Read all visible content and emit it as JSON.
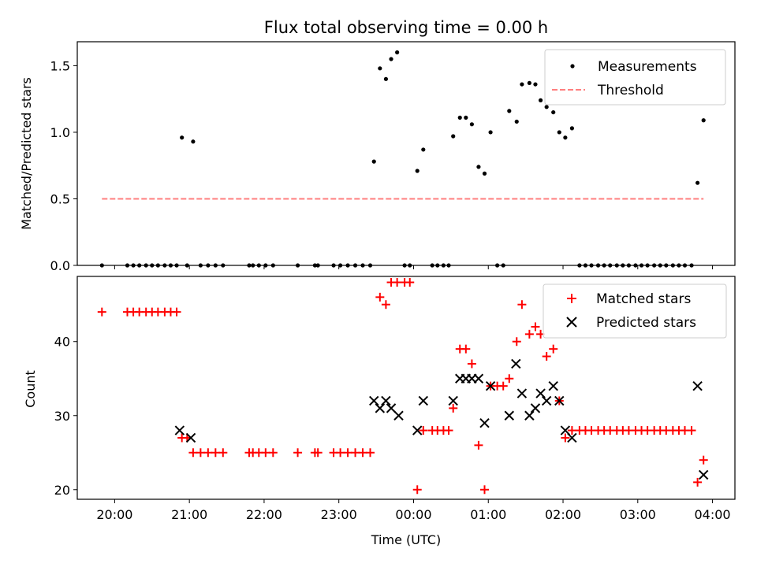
{
  "chart_data": [
    {
      "type": "scatter",
      "title": "Flux total observing time = 0.00 h",
      "xlabel": "",
      "ylabel": "Matched/Predicted stars",
      "ylim": [
        0,
        1.68
      ],
      "yticks": [
        0.0,
        0.5,
        1.0,
        1.5
      ],
      "ytick_labels": [
        "0.0",
        "0.5",
        "1.0",
        "1.5"
      ],
      "legend_position": "top-right",
      "series": [
        {
          "name": "Measurements",
          "color": "#000000",
          "marker": "dot",
          "points": [
            [
              19.83,
              0
            ],
            [
              20.17,
              0
            ],
            [
              20.25,
              0
            ],
            [
              20.33,
              0
            ],
            [
              20.42,
              0
            ],
            [
              20.5,
              0
            ],
            [
              20.58,
              0
            ],
            [
              20.67,
              0
            ],
            [
              20.75,
              0
            ],
            [
              20.83,
              0
            ],
            [
              20.9,
              0.96
            ],
            [
              20.97,
              0
            ],
            [
              21.05,
              0.93
            ],
            [
              21.15,
              0
            ],
            [
              21.25,
              0
            ],
            [
              21.35,
              0
            ],
            [
              21.45,
              0
            ],
            [
              21.8,
              0
            ],
            [
              21.85,
              0
            ],
            [
              21.93,
              0
            ],
            [
              22.02,
              0
            ],
            [
              22.12,
              0
            ],
            [
              22.45,
              0
            ],
            [
              22.68,
              0
            ],
            [
              22.72,
              0
            ],
            [
              22.93,
              0
            ],
            [
              23.02,
              0
            ],
            [
              23.12,
              0
            ],
            [
              23.22,
              0
            ],
            [
              23.32,
              0
            ],
            [
              23.42,
              0
            ],
            [
              23.47,
              0.78
            ],
            [
              23.55,
              1.48
            ],
            [
              23.63,
              1.4
            ],
            [
              23.7,
              1.55
            ],
            [
              23.78,
              1.6
            ],
            [
              23.88,
              0
            ],
            [
              23.95,
              0
            ],
            [
              24.05,
              0.71
            ],
            [
              24.13,
              0.87
            ],
            [
              24.25,
              0
            ],
            [
              24.32,
              0
            ],
            [
              24.4,
              0
            ],
            [
              24.47,
              0
            ],
            [
              24.53,
              0.97
            ],
            [
              24.62,
              1.11
            ],
            [
              24.7,
              1.11
            ],
            [
              24.78,
              1.06
            ],
            [
              24.87,
              0.74
            ],
            [
              24.95,
              0.69
            ],
            [
              25.03,
              1.0
            ],
            [
              25.12,
              0
            ],
            [
              25.2,
              0
            ],
            [
              25.28,
              1.16
            ],
            [
              25.38,
              1.08
            ],
            [
              25.45,
              1.36
            ],
            [
              25.55,
              1.37
            ],
            [
              25.63,
              1.36
            ],
            [
              25.7,
              1.24
            ],
            [
              25.78,
              1.19
            ],
            [
              25.87,
              1.15
            ],
            [
              25.95,
              1.0
            ],
            [
              26.03,
              0.96
            ],
            [
              26.12,
              1.03
            ],
            [
              26.22,
              0
            ],
            [
              26.3,
              0
            ],
            [
              26.38,
              0
            ],
            [
              26.47,
              0
            ],
            [
              26.55,
              0
            ],
            [
              26.63,
              0
            ],
            [
              26.72,
              0
            ],
            [
              26.8,
              0
            ],
            [
              26.88,
              0
            ],
            [
              26.97,
              0
            ],
            [
              27.05,
              0
            ],
            [
              27.13,
              0
            ],
            [
              27.22,
              0
            ],
            [
              27.3,
              0
            ],
            [
              27.38,
              0
            ],
            [
              27.47,
              0
            ],
            [
              27.55,
              0
            ],
            [
              27.63,
              0
            ],
            [
              27.72,
              0
            ],
            [
              27.8,
              0.62
            ],
            [
              27.88,
              1.09
            ]
          ]
        },
        {
          "name": "Threshold",
          "color": "#ff7f7f",
          "marker": "dashed-line",
          "points": [
            [
              19.83,
              0.5
            ],
            [
              27.88,
              0.5
            ]
          ]
        }
      ]
    },
    {
      "type": "scatter",
      "title": "",
      "xlabel": "Time (UTC)",
      "ylabel": "Count",
      "ylim": [
        18.7,
        48.8
      ],
      "yticks": [
        20,
        30,
        40
      ],
      "ytick_labels": [
        "20",
        "30",
        "40"
      ],
      "legend_position": "top-right",
      "series": [
        {
          "name": "Matched stars",
          "color": "#ff0000",
          "marker": "plus",
          "points": [
            [
              19.83,
              44
            ],
            [
              20.17,
              44
            ],
            [
              20.25,
              44
            ],
            [
              20.33,
              44
            ],
            [
              20.42,
              44
            ],
            [
              20.5,
              44
            ],
            [
              20.58,
              44
            ],
            [
              20.67,
              44
            ],
            [
              20.75,
              44
            ],
            [
              20.83,
              44
            ],
            [
              20.9,
              27
            ],
            [
              20.97,
              27
            ],
            [
              21.05,
              25
            ],
            [
              21.15,
              25
            ],
            [
              21.25,
              25
            ],
            [
              21.35,
              25
            ],
            [
              21.45,
              25
            ],
            [
              21.8,
              25
            ],
            [
              21.85,
              25
            ],
            [
              21.93,
              25
            ],
            [
              22.02,
              25
            ],
            [
              22.12,
              25
            ],
            [
              22.45,
              25
            ],
            [
              22.68,
              25
            ],
            [
              22.72,
              25
            ],
            [
              22.93,
              25
            ],
            [
              23.02,
              25
            ],
            [
              23.12,
              25
            ],
            [
              23.22,
              25
            ],
            [
              23.32,
              25
            ],
            [
              23.42,
              25
            ],
            [
              23.55,
              46
            ],
            [
              23.63,
              45
            ],
            [
              23.7,
              48
            ],
            [
              23.78,
              48
            ],
            [
              23.88,
              48
            ],
            [
              23.95,
              48
            ],
            [
              24.05,
              20
            ],
            [
              24.13,
              28
            ],
            [
              24.25,
              28
            ],
            [
              24.32,
              28
            ],
            [
              24.4,
              28
            ],
            [
              24.47,
              28
            ],
            [
              24.53,
              31
            ],
            [
              24.62,
              39
            ],
            [
              24.7,
              39
            ],
            [
              24.78,
              37
            ],
            [
              24.87,
              26
            ],
            [
              24.95,
              20
            ],
            [
              25.03,
              34
            ],
            [
              25.12,
              34
            ],
            [
              25.2,
              34
            ],
            [
              25.28,
              35
            ],
            [
              25.38,
              40
            ],
            [
              25.45,
              45
            ],
            [
              25.55,
              41
            ],
            [
              25.63,
              42
            ],
            [
              25.7,
              41
            ],
            [
              25.78,
              38
            ],
            [
              25.87,
              39
            ],
            [
              25.95,
              32
            ],
            [
              26.03,
              27
            ],
            [
              26.12,
              28
            ],
            [
              26.22,
              28
            ],
            [
              26.3,
              28
            ],
            [
              26.38,
              28
            ],
            [
              26.47,
              28
            ],
            [
              26.55,
              28
            ],
            [
              26.63,
              28
            ],
            [
              26.72,
              28
            ],
            [
              26.8,
              28
            ],
            [
              26.88,
              28
            ],
            [
              26.97,
              28
            ],
            [
              27.05,
              28
            ],
            [
              27.13,
              28
            ],
            [
              27.22,
              28
            ],
            [
              27.3,
              28
            ],
            [
              27.38,
              28
            ],
            [
              27.47,
              28
            ],
            [
              27.55,
              28
            ],
            [
              27.63,
              28
            ],
            [
              27.72,
              28
            ],
            [
              27.8,
              21
            ],
            [
              27.88,
              24
            ]
          ]
        },
        {
          "name": "Predicted stars",
          "color": "#000000",
          "marker": "x",
          "points": [
            [
              20.87,
              28
            ],
            [
              21.02,
              27
            ],
            [
              23.47,
              32
            ],
            [
              23.55,
              31
            ],
            [
              23.63,
              32
            ],
            [
              23.7,
              31
            ],
            [
              23.8,
              30
            ],
            [
              24.05,
              28
            ],
            [
              24.13,
              32
            ],
            [
              24.53,
              32
            ],
            [
              24.62,
              35
            ],
            [
              24.7,
              35
            ],
            [
              24.78,
              35
            ],
            [
              24.87,
              35
            ],
            [
              24.95,
              29
            ],
            [
              25.03,
              34
            ],
            [
              25.28,
              30
            ],
            [
              25.37,
              37
            ],
            [
              25.45,
              33
            ],
            [
              25.55,
              30
            ],
            [
              25.63,
              31
            ],
            [
              25.7,
              33
            ],
            [
              25.78,
              32
            ],
            [
              25.87,
              34
            ],
            [
              25.95,
              32
            ],
            [
              26.03,
              28
            ],
            [
              26.12,
              27
            ],
            [
              27.8,
              34
            ],
            [
              27.88,
              22
            ]
          ]
        }
      ],
      "xlim": [
        19.5,
        28.3
      ],
      "xticks": [
        20,
        21,
        22,
        23,
        24,
        25,
        26,
        27,
        28
      ],
      "xtick_labels": [
        "20:00",
        "21:00",
        "22:00",
        "23:00",
        "00:00",
        "01:00",
        "02:00",
        "03:00",
        "04:00"
      ]
    }
  ]
}
